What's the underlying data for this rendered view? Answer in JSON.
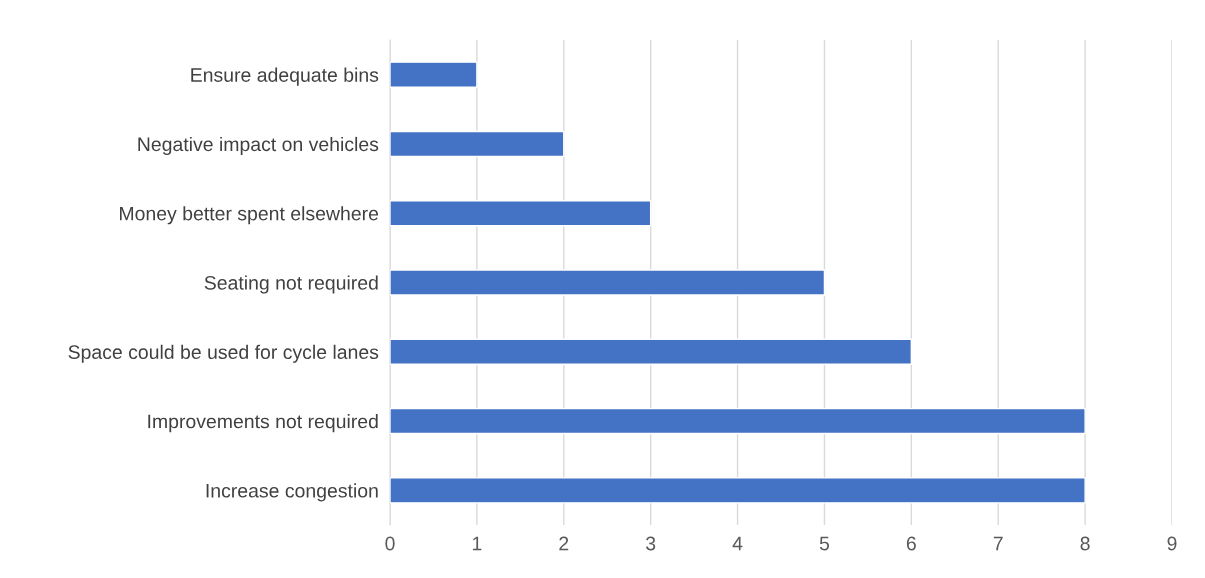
{
  "chart_data": {
    "type": "bar",
    "orientation": "horizontal",
    "categories": [
      "Ensure adequate bins",
      "Negative impact on vehicles",
      "Money better spent elsewhere",
      "Seating not required",
      "Space could be used for cycle lanes",
      "Improvements not required",
      "Increase congestion"
    ],
    "values": [
      1,
      2,
      3,
      5,
      6,
      8,
      8
    ],
    "color": "#4472c4",
    "xlim": [
      0,
      9
    ],
    "xticks": [
      0,
      1,
      2,
      3,
      4,
      5,
      6,
      7,
      8,
      9
    ],
    "grid": "x",
    "legend": false
  }
}
